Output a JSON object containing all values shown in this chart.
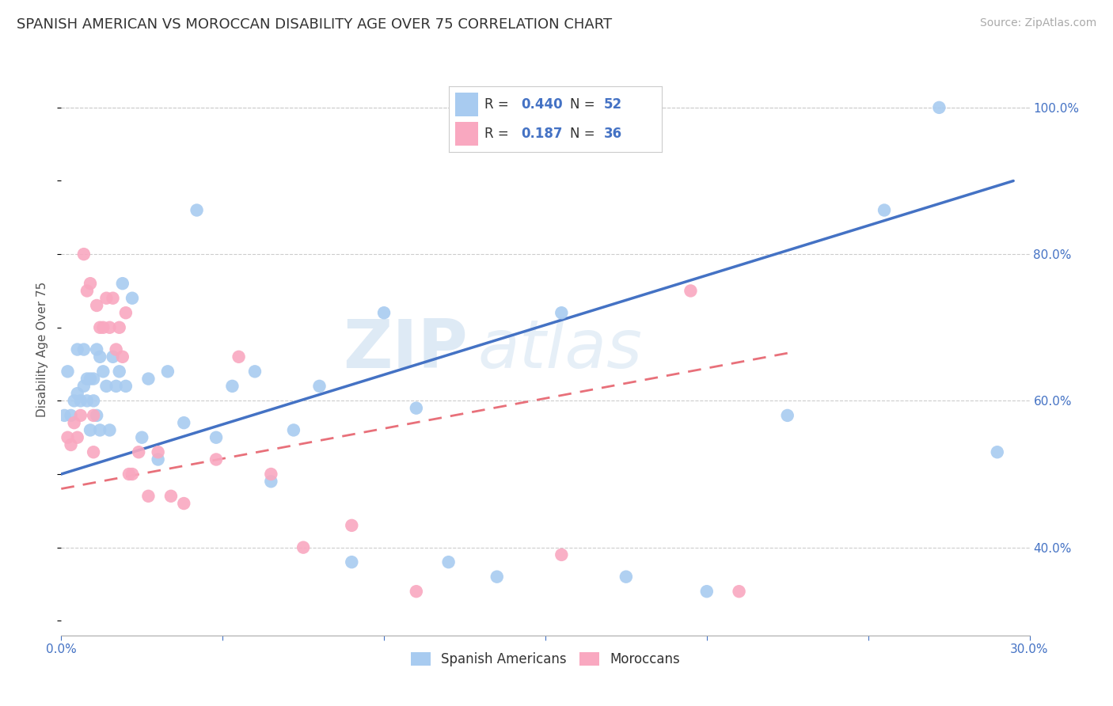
{
  "title": "SPANISH AMERICAN VS MOROCCAN DISABILITY AGE OVER 75 CORRELATION CHART",
  "source": "Source: ZipAtlas.com",
  "ylabel": "Disability Age Over 75",
  "label_blue": "Spanish Americans",
  "label_pink": "Moroccans",
  "xlim": [
    0.0,
    0.3
  ],
  "ylim": [
    0.28,
    1.06
  ],
  "xticks": [
    0.0,
    0.05,
    0.1,
    0.15,
    0.2,
    0.25,
    0.3
  ],
  "yticks_right": [
    0.4,
    0.6,
    0.8,
    1.0
  ],
  "yticklabels_right": [
    "40.0%",
    "60.0%",
    "80.0%",
    "100.0%"
  ],
  "blue_color": "#A8CBF0",
  "pink_color": "#F9A8C0",
  "blue_line_color": "#4472C4",
  "pink_line_color": "#E8707A",
  "R_blue": 0.44,
  "N_blue": 52,
  "R_pink": 0.187,
  "N_pink": 36,
  "watermark_zip": "ZIP",
  "watermark_atlas": "atlas",
  "blue_scatter_x": [
    0.001,
    0.002,
    0.003,
    0.004,
    0.005,
    0.005,
    0.006,
    0.007,
    0.007,
    0.008,
    0.008,
    0.009,
    0.009,
    0.01,
    0.01,
    0.011,
    0.011,
    0.012,
    0.012,
    0.013,
    0.014,
    0.015,
    0.016,
    0.017,
    0.018,
    0.019,
    0.02,
    0.022,
    0.025,
    0.027,
    0.03,
    0.033,
    0.038,
    0.042,
    0.048,
    0.053,
    0.06,
    0.065,
    0.072,
    0.08,
    0.09,
    0.1,
    0.11,
    0.12,
    0.135,
    0.155,
    0.175,
    0.2,
    0.225,
    0.255,
    0.272,
    0.29
  ],
  "blue_scatter_y": [
    0.58,
    0.64,
    0.58,
    0.6,
    0.61,
    0.67,
    0.6,
    0.62,
    0.67,
    0.6,
    0.63,
    0.63,
    0.56,
    0.6,
    0.63,
    0.58,
    0.67,
    0.66,
    0.56,
    0.64,
    0.62,
    0.56,
    0.66,
    0.62,
    0.64,
    0.76,
    0.62,
    0.74,
    0.55,
    0.63,
    0.52,
    0.64,
    0.57,
    0.86,
    0.55,
    0.62,
    0.64,
    0.49,
    0.56,
    0.62,
    0.38,
    0.72,
    0.59,
    0.38,
    0.36,
    0.72,
    0.36,
    0.34,
    0.58,
    0.86,
    1.0,
    0.53
  ],
  "pink_scatter_x": [
    0.002,
    0.003,
    0.004,
    0.005,
    0.006,
    0.007,
    0.008,
    0.009,
    0.01,
    0.01,
    0.011,
    0.012,
    0.013,
    0.014,
    0.015,
    0.016,
    0.017,
    0.018,
    0.019,
    0.02,
    0.021,
    0.022,
    0.024,
    0.027,
    0.03,
    0.034,
    0.038,
    0.048,
    0.055,
    0.065,
    0.075,
    0.09,
    0.11,
    0.155,
    0.195,
    0.21
  ],
  "pink_scatter_y": [
    0.55,
    0.54,
    0.57,
    0.55,
    0.58,
    0.8,
    0.75,
    0.76,
    0.53,
    0.58,
    0.73,
    0.7,
    0.7,
    0.74,
    0.7,
    0.74,
    0.67,
    0.7,
    0.66,
    0.72,
    0.5,
    0.5,
    0.53,
    0.47,
    0.53,
    0.47,
    0.46,
    0.52,
    0.66,
    0.5,
    0.4,
    0.43,
    0.34,
    0.39,
    0.75,
    0.34
  ],
  "blue_line_x": [
    0.0,
    0.295
  ],
  "blue_line_y": [
    0.5,
    0.9
  ],
  "pink_line_x": [
    0.0,
    0.225
  ],
  "pink_line_y": [
    0.48,
    0.665
  ],
  "background_color": "#FFFFFF",
  "grid_color": "#CCCCCC",
  "title_fontsize": 13,
  "axis_fontsize": 11,
  "tick_fontsize": 11,
  "legend_fontsize": 13
}
